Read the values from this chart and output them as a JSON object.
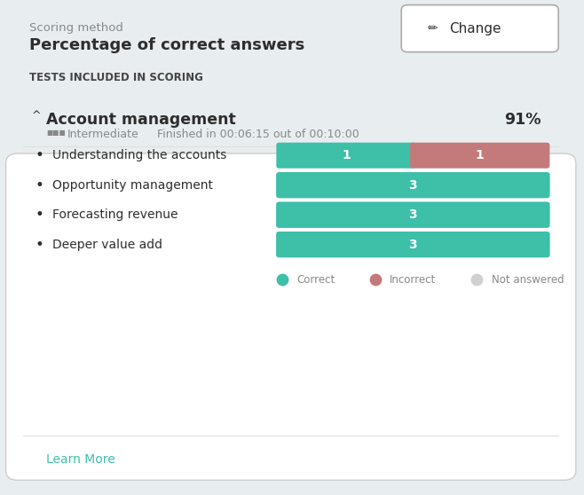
{
  "bg_color": "#e8eef0",
  "card_color": "#ffffff",
  "scoring_method_label": "Scoring method",
  "scoring_method_value": "Percentage of correct answers",
  "change_button_label": "Change",
  "section_header": "TESTS INCLUDED IN SCORING",
  "test_name": "Account management",
  "test_score": "91%",
  "test_level": "Intermediate",
  "test_time": "Finished in 00:06:15 out of 00:10:00",
  "topics": [
    "Understanding the accounts",
    "Opportunity management",
    "Forecasting revenue",
    "Deeper value add"
  ],
  "correct": [
    1,
    3,
    3,
    3
  ],
  "incorrect": [
    1,
    0,
    0,
    0
  ],
  "not_answered": [
    0,
    0,
    0,
    0
  ],
  "correct_color": "#3dbfa8",
  "incorrect_color": "#c47a7a",
  "not_answered_color": "#d0d0d0",
  "bar_label_color": "#ffffff",
  "learn_more_color": "#3dbfa8",
  "learn_more_text": "Learn More",
  "title_color": "#2d2d2d",
  "subtitle_color": "#888888",
  "header_color": "#444444"
}
